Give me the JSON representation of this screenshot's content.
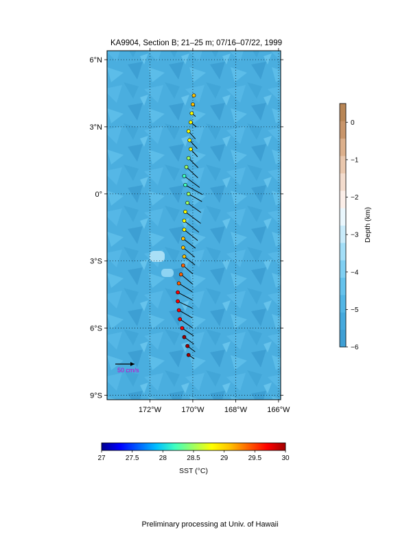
{
  "footer": "Preliminary processing at Univ. of Hawaii",
  "chart_data": {
    "type": "vector-map",
    "title": "KA9904, Section B; 21–25 m; 07/16–07/22, 1999",
    "map": {
      "lon_range": [
        -174.0,
        -165.9
      ],
      "lat_range": [
        -9.2,
        6.4
      ],
      "lon_ticks": [
        {
          "v": -172,
          "label": "172°W"
        },
        {
          "v": -170,
          "label": "170°W"
        },
        {
          "v": -168,
          "label": "168°W"
        },
        {
          "v": -166,
          "label": "166°W"
        }
      ],
      "lat_ticks": [
        {
          "v": 6,
          "label": "6°N"
        },
        {
          "v": 3,
          "label": "3°N"
        },
        {
          "v": 0,
          "label": "0°"
        },
        {
          "v": -3,
          "label": "3°S"
        },
        {
          "v": -6,
          "label": "6°S"
        },
        {
          "v": -9,
          "label": "9°S"
        }
      ],
      "grid": true,
      "grid_style": "dotted",
      "background_color": "#4aaedf",
      "scale_arrow": {
        "label": "50 cm/s",
        "magnitude_cm_s": 50,
        "label_color": "#cc00cc"
      }
    },
    "depth_colorbar": {
      "label": "Depth (km)",
      "range": [
        -6,
        0.5
      ],
      "ticks": [
        {
          "v": 0,
          "label": "0"
        },
        {
          "v": -1,
          "label": "−1"
        },
        {
          "v": -2,
          "label": "−2"
        },
        {
          "v": -3,
          "label": "−3"
        },
        {
          "v": -4,
          "label": "−4"
        },
        {
          "v": -5,
          "label": "−5"
        },
        {
          "v": -6,
          "label": "−6"
        }
      ],
      "colors": [
        "#3e9fd4",
        "#45a9dd",
        "#53b6e5",
        "#65c2ec",
        "#7fcff2",
        "#a3def7",
        "#c9ebfa",
        "#eaf7fd",
        "#fbeee8",
        "#f3dccd",
        "#e9c7ad",
        "#dcb08c",
        "#c8956a",
        "#b88656"
      ]
    },
    "sst_colorbar": {
      "label": "SST (°C)",
      "range": [
        27,
        30
      ],
      "ticks": [
        {
          "v": 27,
          "label": "27"
        },
        {
          "v": 27.5,
          "label": "27.5"
        },
        {
          "v": 28,
          "label": "28"
        },
        {
          "v": 28.5,
          "label": "28.5"
        },
        {
          "v": 29,
          "label": "29"
        },
        {
          "v": 29.5,
          "label": "29.5"
        },
        {
          "v": 30,
          "label": "30"
        }
      ],
      "colors": [
        "#00008f",
        "#0000ff",
        "#0060ff",
        "#00c0ff",
        "#40ffbf",
        "#a0ff60",
        "#ffff00",
        "#ffc000",
        "#ff6000",
        "#ff0000",
        "#a00000"
      ]
    },
    "velocity_vectors": [
      {
        "lon": -169.95,
        "lat": 4.4,
        "u": 0,
        "v": -4,
        "sst": 29.05
      },
      {
        "lon": -170.0,
        "lat": 4.0,
        "u": 5,
        "v": -5,
        "sst": 28.95
      },
      {
        "lon": -170.05,
        "lat": 3.6,
        "u": 10,
        "v": -8,
        "sst": 28.9
      },
      {
        "lon": -170.1,
        "lat": 3.2,
        "u": 15,
        "v": -12,
        "sst": 28.85
      },
      {
        "lon": -170.2,
        "lat": 2.8,
        "u": 18,
        "v": -20,
        "sst": 28.8
      },
      {
        "lon": -170.15,
        "lat": 2.4,
        "u": 20,
        "v": -22,
        "sst": 28.75
      },
      {
        "lon": -170.1,
        "lat": 2.0,
        "u": 18,
        "v": -20,
        "sst": 28.7
      },
      {
        "lon": -170.2,
        "lat": 1.6,
        "u": 25,
        "v": -25,
        "sst": 28.55
      },
      {
        "lon": -170.3,
        "lat": 1.2,
        "u": 30,
        "v": -28,
        "sst": 28.4
      },
      {
        "lon": -170.4,
        "lat": 0.8,
        "u": 40,
        "v": -30,
        "sst": 28.3
      },
      {
        "lon": -170.35,
        "lat": 0.4,
        "u": 45,
        "v": -25,
        "sst": 28.35
      },
      {
        "lon": -170.2,
        "lat": 0.0,
        "u": 35,
        "v": -20,
        "sst": 28.45
      },
      {
        "lon": -170.25,
        "lat": -0.4,
        "u": 35,
        "v": -25,
        "sst": 28.55
      },
      {
        "lon": -170.35,
        "lat": -0.8,
        "u": 40,
        "v": -30,
        "sst": 28.65
      },
      {
        "lon": -170.4,
        "lat": -1.2,
        "u": 38,
        "v": -30,
        "sst": 28.75
      },
      {
        "lon": -170.4,
        "lat": -1.6,
        "u": 35,
        "v": -28,
        "sst": 28.85
      },
      {
        "lon": -170.45,
        "lat": -2.0,
        "u": 32,
        "v": -25,
        "sst": 28.95
      },
      {
        "lon": -170.45,
        "lat": -2.4,
        "u": 30,
        "v": -25,
        "sst": 29.05
      },
      {
        "lon": -170.4,
        "lat": -2.8,
        "u": 28,
        "v": -22,
        "sst": 29.15
      },
      {
        "lon": -170.45,
        "lat": -3.2,
        "u": 25,
        "v": -22,
        "sst": 29.2
      },
      {
        "lon": -170.55,
        "lat": -3.6,
        "u": 30,
        "v": -25,
        "sst": 29.3
      },
      {
        "lon": -170.65,
        "lat": -4.0,
        "u": 35,
        "v": -22,
        "sst": 29.4
      },
      {
        "lon": -170.7,
        "lat": -4.4,
        "u": 38,
        "v": -20,
        "sst": 29.5
      },
      {
        "lon": -170.7,
        "lat": -4.8,
        "u": 38,
        "v": -18,
        "sst": 29.55
      },
      {
        "lon": -170.65,
        "lat": -5.2,
        "u": 35,
        "v": -20,
        "sst": 29.6
      },
      {
        "lon": -170.6,
        "lat": -5.6,
        "u": 32,
        "v": -22,
        "sst": 29.65
      },
      {
        "lon": -170.5,
        "lat": -6.0,
        "u": 30,
        "v": -20,
        "sst": 29.7
      },
      {
        "lon": -170.4,
        "lat": -6.4,
        "u": 25,
        "v": -18,
        "sst": 29.75
      },
      {
        "lon": -170.25,
        "lat": -6.8,
        "u": 20,
        "v": -15,
        "sst": 29.85
      },
      {
        "lon": -170.2,
        "lat": -7.2,
        "u": 15,
        "v": -10,
        "sst": 29.95
      }
    ]
  }
}
